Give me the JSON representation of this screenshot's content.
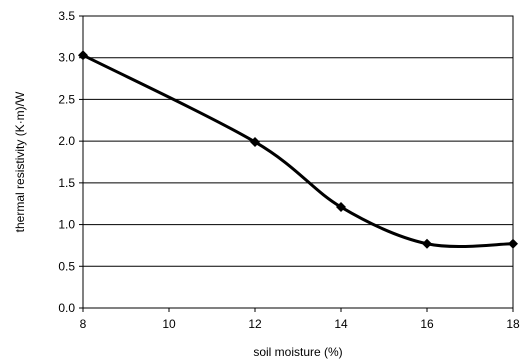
{
  "chart_data": {
    "type": "line",
    "title": "",
    "xlabel": "soil moisture (%)",
    "ylabel": "thermal resistivity (K·m)/W",
    "xlim": [
      8,
      18
    ],
    "ylim": [
      0,
      3.5
    ],
    "xticks": [
      8,
      10,
      12,
      14,
      16,
      18
    ],
    "yticks": [
      0.0,
      0.5,
      1.0,
      1.5,
      2.0,
      2.5,
      3.0,
      3.5
    ],
    "x": [
      8,
      12,
      14,
      16,
      18
    ],
    "series": [
      {
        "values": [
          3.03,
          1.99,
          1.21,
          0.77,
          0.77
        ]
      }
    ],
    "grid": "horizontal",
    "legend": "none",
    "colors": {
      "line": "#000000",
      "grid": "#000000",
      "background": "#ffffff"
    }
  }
}
